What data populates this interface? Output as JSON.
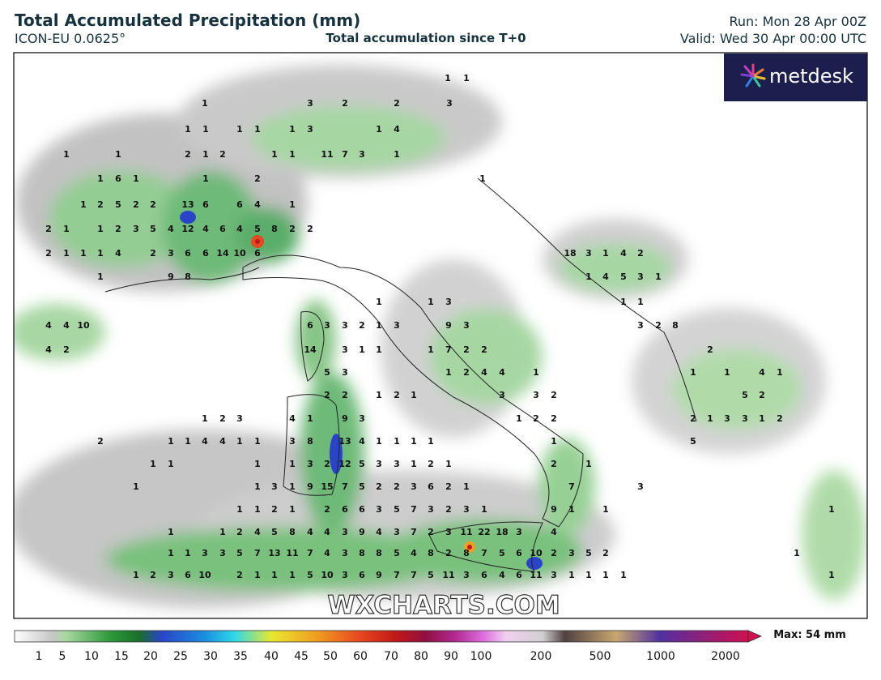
{
  "header": {
    "title": "Total Accumulated Precipitation (mm)",
    "model": "ICON-EU 0.0625°",
    "subtitle": "Total accumulation since T+0",
    "run": "Run: Mon 28 Apr 00Z",
    "valid": "Valid: Wed 30 Apr 00:00 UTC"
  },
  "logo": "metdesk",
  "watermark": "WXCHARTS.COM",
  "colorbar": {
    "labels": [
      1,
      5,
      10,
      15,
      20,
      25,
      30,
      35,
      40,
      45,
      50,
      60,
      70,
      80,
      90,
      100,
      200,
      500,
      1000,
      2000
    ],
    "max_label": "Max: 54 mm"
  },
  "map_labels": [
    [
      "1",
      "1"
    ],
    [
      "1",
      "3",
      "2",
      "2",
      "3"
    ],
    [
      "1",
      "1",
      "1",
      "1",
      "1",
      "3",
      "1",
      "4"
    ],
    [
      "1",
      "1",
      "2",
      "1",
      "2",
      "1",
      "1",
      "11",
      "7",
      "3",
      "1"
    ],
    [
      "1",
      "6",
      "1",
      "1",
      "2",
      "1"
    ],
    [
      "1",
      "2",
      "5",
      "2",
      "2",
      "13",
      "6",
      "6",
      "4",
      "1"
    ],
    [
      "2",
      "1",
      "1",
      "2",
      "3",
      "5",
      "4",
      "12",
      "4",
      "6",
      "4",
      "5",
      "8",
      "2",
      "2"
    ],
    [
      "2",
      "1",
      "1",
      "1",
      "4",
      "2",
      "3",
      "6",
      "6",
      "14",
      "10",
      "6",
      "18",
      "3",
      "1",
      "4",
      "2"
    ],
    [
      "1",
      "9",
      "8",
      "1",
      "4",
      "5",
      "3",
      "1"
    ],
    [
      "1",
      "1",
      "3",
      "1",
      "1"
    ],
    [
      "4",
      "4",
      "10",
      "6",
      "3",
      "3",
      "2",
      "1",
      "3",
      "9",
      "3",
      "3",
      "2",
      "8"
    ],
    [
      "4",
      "2",
      "14",
      "3",
      "1",
      "1",
      "1",
      "7",
      "2",
      "2",
      "2"
    ],
    [
      "5",
      "3",
      "1",
      "2",
      "4",
      "4",
      "1",
      "1",
      "1",
      "4",
      "1"
    ],
    [
      "2",
      "2",
      "1",
      "2",
      "1",
      "3",
      "3",
      "2",
      "5",
      "2"
    ],
    [
      "1",
      "2",
      "3",
      "4",
      "1",
      "9",
      "3",
      "1",
      "2",
      "2",
      "2",
      "1",
      "3",
      "3",
      "1",
      "2"
    ],
    [
      "2",
      "1",
      "1",
      "4",
      "4",
      "1",
      "1",
      "3",
      "8",
      "13",
      "4",
      "1",
      "1",
      "1",
      "1",
      "1",
      "5"
    ],
    [
      "1",
      "1",
      "1",
      "1",
      "3",
      "2",
      "12",
      "5",
      "3",
      "3",
      "1",
      "2",
      "1",
      "2",
      "1"
    ],
    [
      "1",
      "1",
      "3",
      "1",
      "9",
      "15",
      "7",
      "5",
      "2",
      "2",
      "3",
      "6",
      "2",
      "1",
      "7",
      "3"
    ],
    [
      "1",
      "1",
      "2",
      "1",
      "2",
      "6",
      "6",
      "3",
      "5",
      "7",
      "3",
      "2",
      "3",
      "1",
      "9",
      "1",
      "1",
      "1"
    ],
    [
      "1",
      "1",
      "2",
      "4",
      "5",
      "8",
      "4",
      "4",
      "3",
      "9",
      "4",
      "3",
      "7",
      "2",
      "3",
      "11",
      "22",
      "18",
      "3",
      "4"
    ],
    [
      "1",
      "1",
      "3",
      "3",
      "5",
      "7",
      "13",
      "11",
      "7",
      "4",
      "3",
      "8",
      "8",
      "5",
      "4",
      "8",
      "2",
      "8",
      "7",
      "5",
      "6",
      "10",
      "2",
      "3",
      "5",
      "2",
      "1"
    ],
    [
      "1",
      "2",
      "3",
      "6",
      "10",
      "2",
      "1",
      "1",
      "1",
      "5",
      "10",
      "3",
      "6",
      "9",
      "7",
      "7",
      "5",
      "11",
      "3",
      "6",
      "4",
      "6",
      "11",
      "3",
      "1",
      "1",
      "1",
      "1",
      "1"
    ]
  ]
}
